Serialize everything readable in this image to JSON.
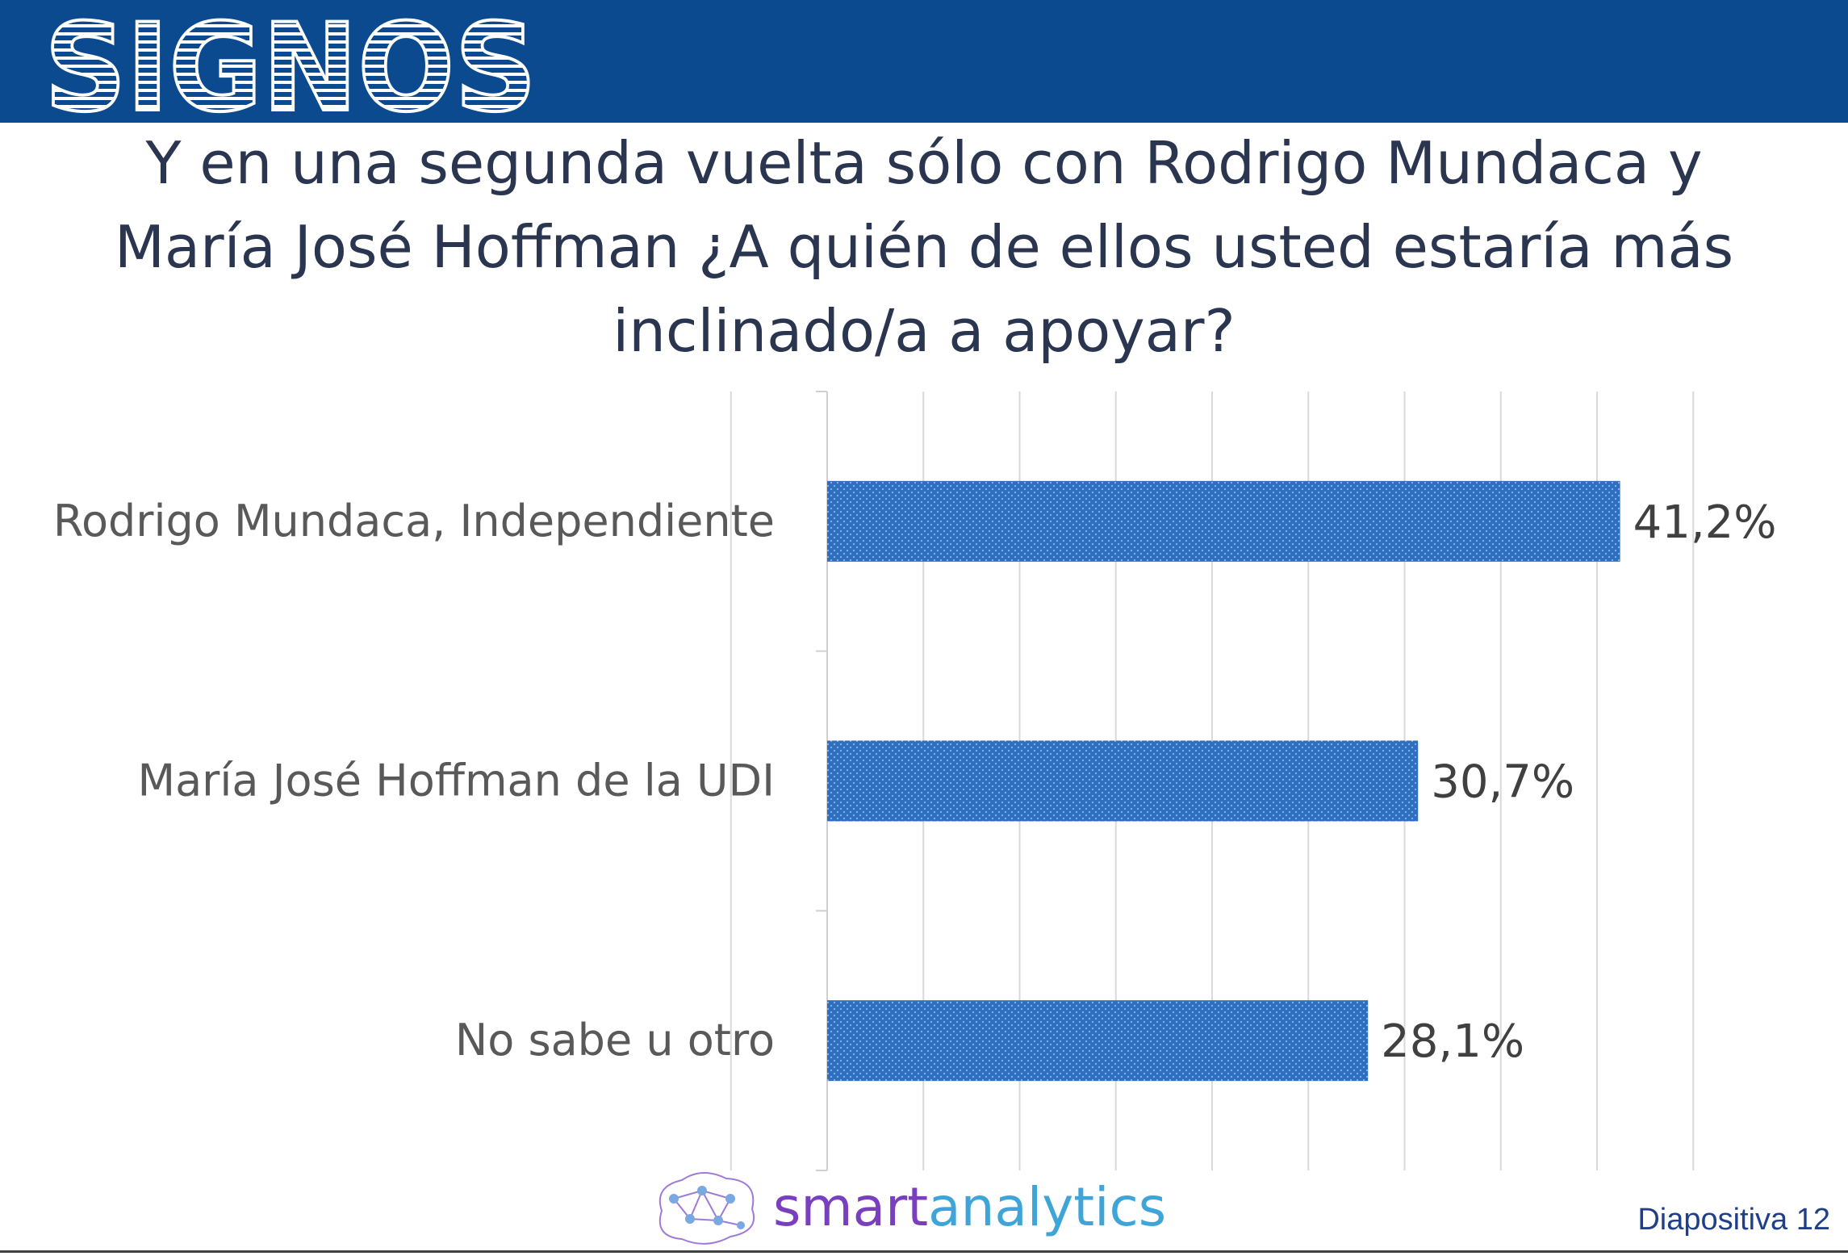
{
  "header": {
    "logo_text": "SIGNOS",
    "logo_stripe_color": "#ffffff",
    "banner_color": "#0b4a8e"
  },
  "title": {
    "line1": "Y en una segunda vuelta sólo con Rodrigo Mundaca y",
    "line2": "María José Hoffman ¿A quién de ellos usted estaría más",
    "line3": "inclinado/a a apoyar?"
  },
  "chart_data": {
    "type": "bar",
    "orientation": "horizontal",
    "categories": [
      "Rodrigo Mundaca, Independiente",
      "María José Hoffman de la UDI",
      "No sabe u otro"
    ],
    "values": [
      41.2,
      30.7,
      28.1
    ],
    "data_labels": [
      "41,2%",
      "30,7%",
      "28,1%"
    ],
    "xlim": [
      -5,
      45
    ],
    "grid": true,
    "bar_color": "#2e6fbf",
    "bar_pattern": "dotted"
  },
  "footer": {
    "brand_part1": "smart",
    "brand_part2": "analytics",
    "brand_color1": "#7a3fbf",
    "brand_color2": "#3fa5d8",
    "brand_icon": "brain-network-icon",
    "slide_number": "Diapositiva 12"
  }
}
